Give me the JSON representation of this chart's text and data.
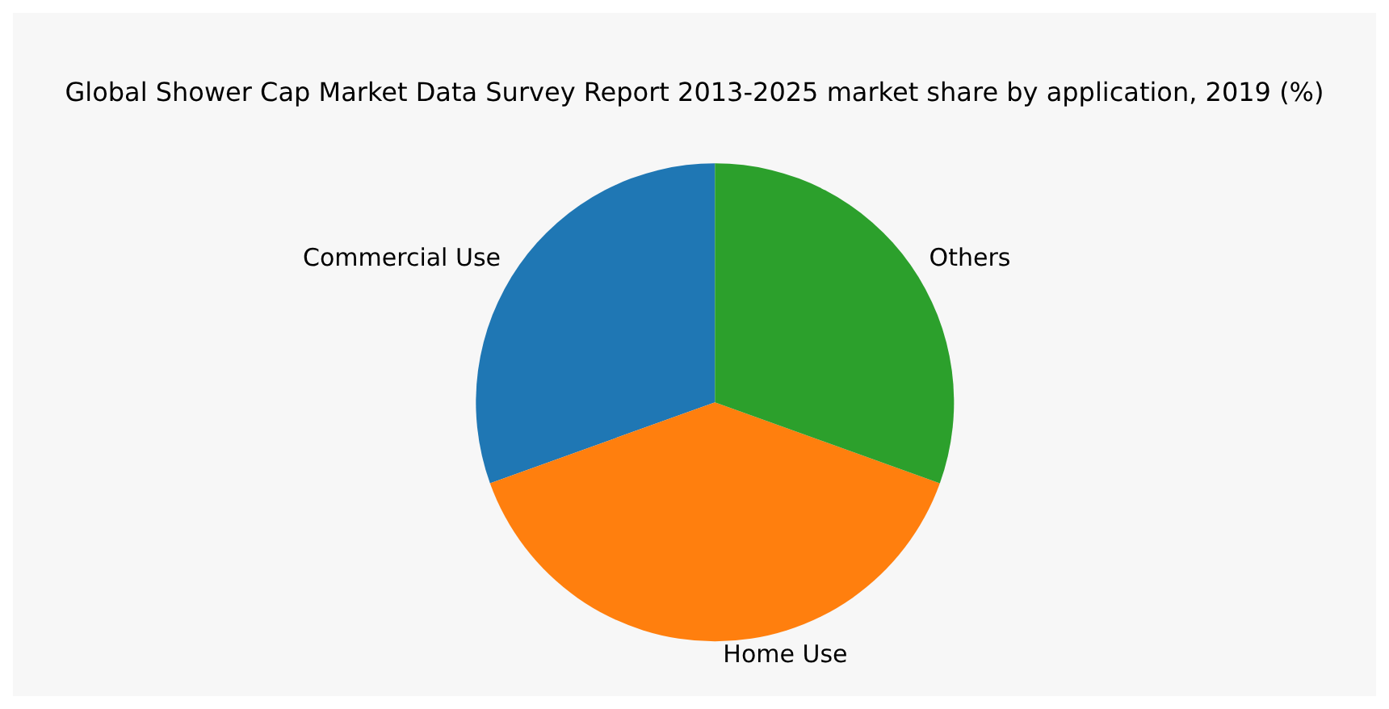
{
  "chart_data": {
    "type": "pie",
    "title": "Global Shower Cap Market Data Survey Report 2013-2025 market share by application, 2019 (%)",
    "categories": [
      "Commercial Use",
      "Home Use",
      "Others"
    ],
    "values": [
      30.5,
      39,
      30.5
    ],
    "colors": [
      "#1f77b4",
      "#ff7f0e",
      "#2ca02c"
    ],
    "legend": false
  }
}
